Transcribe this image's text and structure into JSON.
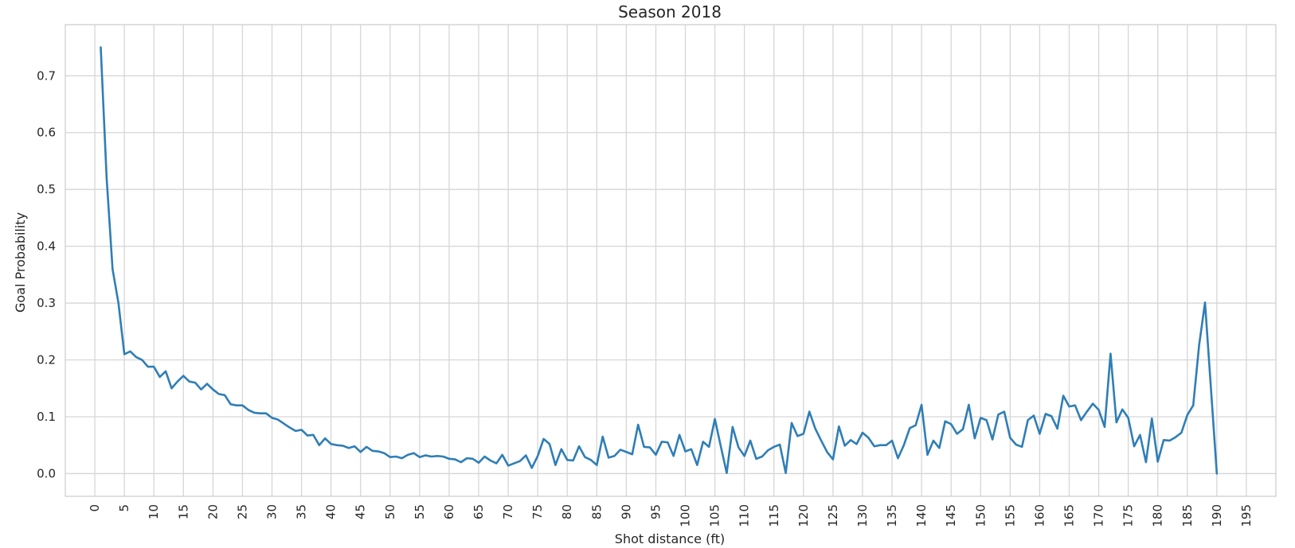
{
  "chart_data": {
    "type": "line",
    "title": "Season 2018",
    "xlabel": "Shot distance (ft)",
    "ylabel": "Goal Probability",
    "xlim": [
      -5,
      200
    ],
    "ylim": [
      -0.04,
      0.79
    ],
    "grid": true,
    "xticks": [
      0,
      5,
      10,
      15,
      20,
      25,
      30,
      35,
      40,
      45,
      50,
      55,
      60,
      65,
      70,
      75,
      80,
      85,
      90,
      95,
      100,
      105,
      110,
      115,
      120,
      125,
      130,
      135,
      140,
      145,
      150,
      155,
      160,
      165,
      170,
      175,
      180,
      185,
      190,
      195
    ],
    "xtick_labels": [
      "0",
      "5",
      "10",
      "15",
      "20",
      "25",
      "30",
      "35",
      "40",
      "45",
      "50",
      "55",
      "60",
      "65",
      "70",
      "75",
      "80",
      "85",
      "90",
      "95",
      "100",
      "105",
      "110",
      "115",
      "120",
      "125",
      "130",
      "135",
      "140",
      "145",
      "150",
      "155",
      "160",
      "165",
      "170",
      "175",
      "180",
      "185",
      "190",
      "195"
    ],
    "yticks": [
      0.0,
      0.1,
      0.2,
      0.3,
      0.4,
      0.5,
      0.6,
      0.7
    ],
    "ytick_labels": [
      "0.0",
      "0.1",
      "0.2",
      "0.3",
      "0.4",
      "0.5",
      "0.6",
      "0.7"
    ],
    "series": [
      {
        "color": "#2f7eb6",
        "x": [
          1,
          2,
          3,
          4,
          5,
          6,
          7,
          8,
          9,
          10,
          11,
          12,
          13,
          14,
          15,
          16,
          17,
          18,
          19,
          20,
          21,
          22,
          23,
          24,
          25,
          26,
          27,
          28,
          29,
          30,
          31,
          32,
          33,
          34,
          35,
          36,
          37,
          38,
          39,
          40,
          41,
          42,
          43,
          44,
          45,
          46,
          47,
          48,
          49,
          50,
          51,
          52,
          53,
          54,
          55,
          56,
          57,
          58,
          59,
          60,
          61,
          62,
          63,
          64,
          65,
          66,
          67,
          68,
          69,
          70,
          71,
          72,
          73,
          74,
          75,
          76,
          77,
          78,
          79,
          80,
          81,
          82,
          83,
          84,
          85,
          86,
          87,
          88,
          89,
          90,
          91,
          92,
          93,
          94,
          95,
          96,
          97,
          98,
          99,
          100,
          101,
          102,
          103,
          104,
          105,
          106,
          107,
          108,
          109,
          110,
          111,
          112,
          113,
          114,
          115,
          116,
          117,
          118,
          119,
          120,
          121,
          122,
          123,
          124,
          125,
          126,
          127,
          128,
          129,
          130,
          131,
          132,
          133,
          134,
          135,
          136,
          137,
          138,
          139,
          140,
          141,
          142,
          143,
          144,
          145,
          146,
          147,
          148,
          149,
          150,
          151,
          152,
          153,
          154,
          155,
          156,
          157,
          158,
          159,
          160,
          161,
          162,
          163,
          164,
          165,
          166,
          167,
          168,
          169,
          170,
          171,
          172,
          173,
          174,
          175,
          176,
          177,
          178,
          179,
          180,
          181,
          182,
          183,
          184,
          185,
          186,
          187,
          188,
          189,
          190
        ],
        "y": [
          0.75,
          0.52,
          0.36,
          0.3,
          0.21,
          0.215,
          0.205,
          0.2,
          0.188,
          0.188,
          0.17,
          0.18,
          0.15,
          0.162,
          0.172,
          0.162,
          0.16,
          0.148,
          0.158,
          0.148,
          0.14,
          0.138,
          0.122,
          0.12,
          0.12,
          0.112,
          0.107,
          0.106,
          0.106,
          0.098,
          0.095,
          0.088,
          0.081,
          0.075,
          0.077,
          0.067,
          0.068,
          0.05,
          0.062,
          0.052,
          0.05,
          0.049,
          0.045,
          0.048,
          0.038,
          0.047,
          0.04,
          0.039,
          0.036,
          0.029,
          0.03,
          0.027,
          0.033,
          0.036,
          0.029,
          0.032,
          0.03,
          0.031,
          0.03,
          0.026,
          0.025,
          0.02,
          0.027,
          0.026,
          0.019,
          0.03,
          0.023,
          0.018,
          0.033,
          0.014,
          0.018,
          0.022,
          0.032,
          0.01,
          0.031,
          0.061,
          0.052,
          0.015,
          0.043,
          0.024,
          0.023,
          0.048,
          0.029,
          0.024,
          0.015,
          0.065,
          0.028,
          0.031,
          0.042,
          0.038,
          0.034,
          0.086,
          0.047,
          0.046,
          0.033,
          0.056,
          0.055,
          0.031,
          0.068,
          0.039,
          0.043,
          0.015,
          0.056,
          0.047,
          0.096,
          0.048,
          0.001,
          0.082,
          0.046,
          0.031,
          0.058,
          0.026,
          0.03,
          0.041,
          0.047,
          0.051,
          0.001,
          0.089,
          0.066,
          0.07,
          0.109,
          0.079,
          0.058,
          0.038,
          0.025,
          0.083,
          0.049,
          0.059,
          0.052,
          0.072,
          0.063,
          0.048,
          0.05,
          0.05,
          0.058,
          0.027,
          0.05,
          0.08,
          0.085,
          0.121,
          0.033,
          0.058,
          0.045,
          0.092,
          0.087,
          0.07,
          0.078,
          0.121,
          0.062,
          0.098,
          0.094,
          0.06,
          0.104,
          0.109,
          0.063,
          0.051,
          0.047,
          0.094,
          0.102,
          0.07,
          0.105,
          0.101,
          0.079,
          0.137,
          0.118,
          0.12,
          0.094,
          0.109,
          0.123,
          0.112,
          0.082,
          0.211,
          0.09,
          0.113,
          0.098,
          0.048,
          0.068,
          0.02,
          0.097,
          0.021,
          0.059,
          0.058,
          0.064,
          0.072,
          0.103,
          0.12,
          0.226,
          0.301,
          0.15,
          0.0
        ]
      }
    ]
  }
}
